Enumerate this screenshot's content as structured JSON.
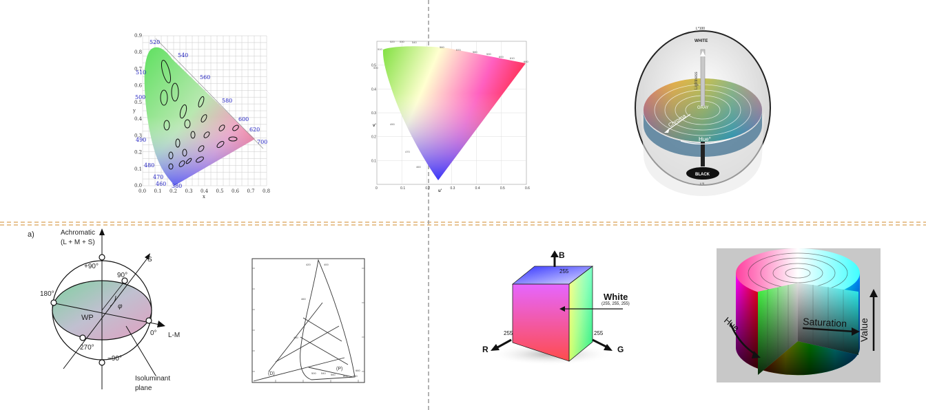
{
  "panels": {
    "cie_xy": {
      "x_ticks": [
        "0.0",
        "0.1",
        "0.2",
        "0.3",
        "0.4",
        "0.5",
        "0.6",
        "0.7",
        "0.8"
      ],
      "y_ticks": [
        "0.0",
        "0.1",
        "0.2",
        "0.3",
        "0.4",
        "0.5",
        "0.6",
        "0.7",
        "0.8",
        "0.9"
      ],
      "xlabel": "x",
      "ylabel": "y",
      "wavelengths": [
        "520",
        "540",
        "560",
        "580",
        "600",
        "620",
        "700",
        "510",
        "500",
        "490",
        "480",
        "470",
        "460",
        "380"
      ]
    },
    "cie_uv": {
      "x_ticks": [
        "0",
        "0.1",
        "0.2",
        "0.3",
        "0.4",
        "0.5",
        "0.6"
      ],
      "y_ticks": [
        "0.1",
        "0.2",
        "0.3",
        "0.4",
        "0.5"
      ],
      "xlabel": "u'",
      "ylabel": "v'"
    },
    "lab_sphere": {
      "top_label": "L*100",
      "white": "WHITE",
      "lightness": "Lightness",
      "gray": "GRAY",
      "chroma": "Chroma",
      "hue": "Hue°",
      "black": "BLACK",
      "bottom_label": "L*0"
    },
    "dkl": {
      "panel_label": "a)",
      "achromatic_1": "Achromatic",
      "achromatic_2": "(L + M + S)",
      "plus90": "+90°",
      "deg90": "90°",
      "s_axis": "S",
      "deg180": "180°",
      "phi": "φ",
      "wp": "WP",
      "deg0": "0°",
      "lm_axis": "L-M",
      "deg270": "270°",
      "minus90": "−90°",
      "iso_1": "Isoluminant",
      "iso_2": "plane"
    },
    "triangle_sketch": {
      "label_d": "(D)",
      "label_p": "(P)"
    },
    "rgb_cube": {
      "b_label": "B",
      "b_value": "255",
      "white_label": "White",
      "white_value": "(255, 255, 255)",
      "r_label": "R",
      "r_value": "255",
      "g_label": "G",
      "g_value": "255"
    },
    "hsv_cylinder": {
      "hue": "Hue",
      "saturation": "Saturation",
      "value": "Value"
    }
  },
  "colors": {
    "divider_horizontal": "#e0b070",
    "divider_vertical": "#999999",
    "hsv_background": "#c8c8c8"
  }
}
